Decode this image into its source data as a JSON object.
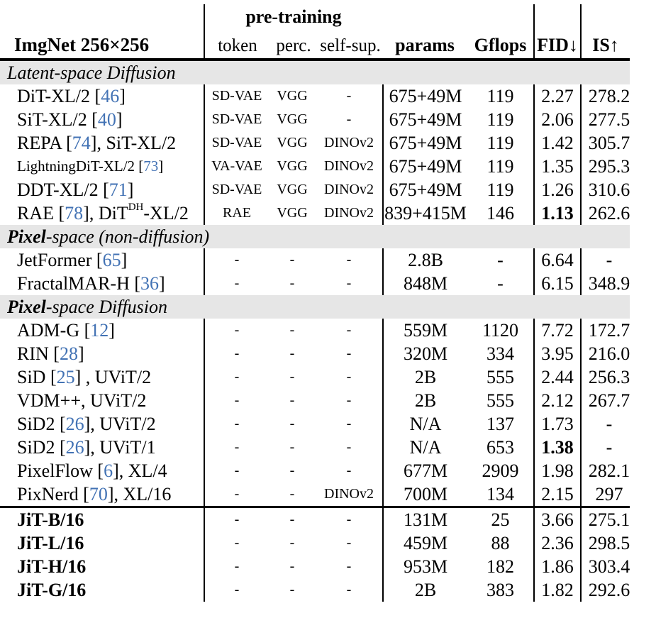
{
  "colors": {
    "citation": "#4272b4",
    "banner": "#e6e6e6",
    "rule": "#000000"
  },
  "header": {
    "title": "ImgNet 256×256",
    "group_label": "pre-training",
    "sub_cols": [
      "token",
      "perc.",
      "self-sup."
    ],
    "cols": [
      "params",
      "Gflops",
      "FID↓",
      "IS↑"
    ]
  },
  "sections": [
    {
      "label_bold": "",
      "label_rest": "Latent-space Diffusion",
      "rows": [
        {
          "name": [
            {
              "t": "DiT-XL/2 ["
            },
            {
              "t": "46",
              "s": "cite"
            },
            {
              "t": "]"
            }
          ],
          "token": "SD-VAE",
          "perc": "VGG",
          "selfsup": "-",
          "params": "675+49M",
          "gflops": "119",
          "fid": "2.27",
          "is": "278.2"
        },
        {
          "name": [
            {
              "t": "SiT-XL/2 ["
            },
            {
              "t": "40",
              "s": "cite"
            },
            {
              "t": "]"
            }
          ],
          "token": "SD-VAE",
          "perc": "VGG",
          "selfsup": "-",
          "params": "675+49M",
          "gflops": "119",
          "fid": "2.06",
          "is": "277.5"
        },
        {
          "name": [
            {
              "t": "REPA ["
            },
            {
              "t": "74",
              "s": "cite"
            },
            {
              "t": "], SiT-XL/2"
            }
          ],
          "token": "SD-VAE",
          "perc": "VGG",
          "selfsup": "DINOv2",
          "params": "675+49M",
          "gflops": "119",
          "fid": "1.42",
          "is": "305.7"
        },
        {
          "name": [
            {
              "t": "LightningDiT-XL/2 ["
            },
            {
              "t": "73",
              "s": "cite"
            },
            {
              "t": "]"
            }
          ],
          "name_small": true,
          "token": "VA-VAE",
          "perc": "VGG",
          "selfsup": "DINOv2",
          "params": "675+49M",
          "gflops": "119",
          "fid": "1.35",
          "is": "295.3"
        },
        {
          "name": [
            {
              "t": "DDT-XL/2 ["
            },
            {
              "t": "71",
              "s": "cite"
            },
            {
              "t": "]"
            }
          ],
          "token": "SD-VAE",
          "perc": "VGG",
          "selfsup": "DINOv2",
          "params": "675+49M",
          "gflops": "119",
          "fid": "1.26",
          "is": "310.6"
        },
        {
          "name": [
            {
              "t": "RAE ["
            },
            {
              "t": "78",
              "s": "cite"
            },
            {
              "t": "], DiT"
            },
            {
              "t": "DH",
              "s": "sup"
            },
            {
              "t": "-XL/2"
            }
          ],
          "token": "RAE",
          "perc": "VGG",
          "selfsup": "DINOv2",
          "params": "839+415M",
          "gflops": "146",
          "fid": "1.13",
          "fid_bold": true,
          "is": "262.6"
        }
      ]
    },
    {
      "label_bold": "Pixel",
      "label_rest": "-space (non-diffusion)",
      "rows": [
        {
          "name": [
            {
              "t": "JetFormer ["
            },
            {
              "t": "65",
              "s": "cite"
            },
            {
              "t": "]"
            }
          ],
          "token": "-",
          "perc": "-",
          "selfsup": "-",
          "params": "2.8B",
          "gflops": "-",
          "fid": "6.64",
          "is": "-"
        },
        {
          "name": [
            {
              "t": "FractalMAR-H ["
            },
            {
              "t": "36",
              "s": "cite"
            },
            {
              "t": "]"
            }
          ],
          "token": "-",
          "perc": "-",
          "selfsup": "-",
          "params": "848M",
          "gflops": "-",
          "fid": "6.15",
          "is": "348.9"
        }
      ]
    },
    {
      "label_bold": "Pixel",
      "label_rest": "-space Diffusion",
      "rows": [
        {
          "name": [
            {
              "t": "ADM-G ["
            },
            {
              "t": "12",
              "s": "cite"
            },
            {
              "t": "]"
            }
          ],
          "token": "-",
          "perc": "-",
          "selfsup": "-",
          "params": "559M",
          "gflops": "1120",
          "fid": "7.72",
          "is": "172.7"
        },
        {
          "name": [
            {
              "t": "RIN ["
            },
            {
              "t": "28",
              "s": "cite"
            },
            {
              "t": "]"
            }
          ],
          "token": "-",
          "perc": "-",
          "selfsup": "-",
          "params": "320M",
          "gflops": "334",
          "fid": "3.95",
          "is": "216.0"
        },
        {
          "name": [
            {
              "t": "SiD ["
            },
            {
              "t": "25",
              "s": "cite"
            },
            {
              "t": "] , UViT/2"
            }
          ],
          "token": "-",
          "perc": "-",
          "selfsup": "-",
          "params": "2B",
          "gflops": "555",
          "fid": "2.44",
          "is": "256.3"
        },
        {
          "name": [
            {
              "t": "VDM++, UViT/2"
            }
          ],
          "token": "-",
          "perc": "-",
          "selfsup": "-",
          "params": "2B",
          "gflops": "555",
          "fid": "2.12",
          "is": "267.7"
        },
        {
          "name": [
            {
              "t": "SiD2 ["
            },
            {
              "t": "26",
              "s": "cite"
            },
            {
              "t": "], UViT/2"
            }
          ],
          "token": "-",
          "perc": "-",
          "selfsup": "-",
          "params": "N/A",
          "gflops": "137",
          "fid": "1.73",
          "is": "-"
        },
        {
          "name": [
            {
              "t": "SiD2 ["
            },
            {
              "t": "26",
              "s": "cite"
            },
            {
              "t": "], UViT/1"
            }
          ],
          "token": "-",
          "perc": "-",
          "selfsup": "-",
          "params": "N/A",
          "gflops": "653",
          "fid": "1.38",
          "fid_bold": true,
          "is": "-"
        },
        {
          "name": [
            {
              "t": "PixelFlow ["
            },
            {
              "t": "6",
              "s": "cite"
            },
            {
              "t": "], XL/4"
            }
          ],
          "token": "-",
          "perc": "-",
          "selfsup": "-",
          "params": "677M",
          "gflops": "2909",
          "fid": "1.98",
          "is": "282.1"
        },
        {
          "name": [
            {
              "t": "PixNerd ["
            },
            {
              "t": "70",
              "s": "cite"
            },
            {
              "t": "], XL/16"
            }
          ],
          "token": "-",
          "perc": "-",
          "selfsup": "DINOv2",
          "params": "700M",
          "gflops": "134",
          "fid": "2.15",
          "is": "297"
        },
        {
          "name": [
            {
              "t": "JiT-B/16"
            }
          ],
          "name_bold": true,
          "group_break": true,
          "token": "-",
          "perc": "-",
          "selfsup": "-",
          "params": "131M",
          "gflops": "25",
          "fid": "3.66",
          "is": "275.1"
        },
        {
          "name": [
            {
              "t": "JiT-L/16"
            }
          ],
          "name_bold": true,
          "token": "-",
          "perc": "-",
          "selfsup": "-",
          "params": "459M",
          "gflops": "88",
          "fid": "2.36",
          "is": "298.5"
        },
        {
          "name": [
            {
              "t": "JiT-H/16"
            }
          ],
          "name_bold": true,
          "token": "-",
          "perc": "-",
          "selfsup": "-",
          "params": "953M",
          "gflops": "182",
          "fid": "1.86",
          "is": "303.4"
        },
        {
          "name": [
            {
              "t": "JiT-G/16"
            }
          ],
          "name_bold": true,
          "token": "-",
          "perc": "-",
          "selfsup": "-",
          "params": "2B",
          "gflops": "383",
          "fid": "1.82",
          "is": "292.6"
        }
      ]
    }
  ]
}
